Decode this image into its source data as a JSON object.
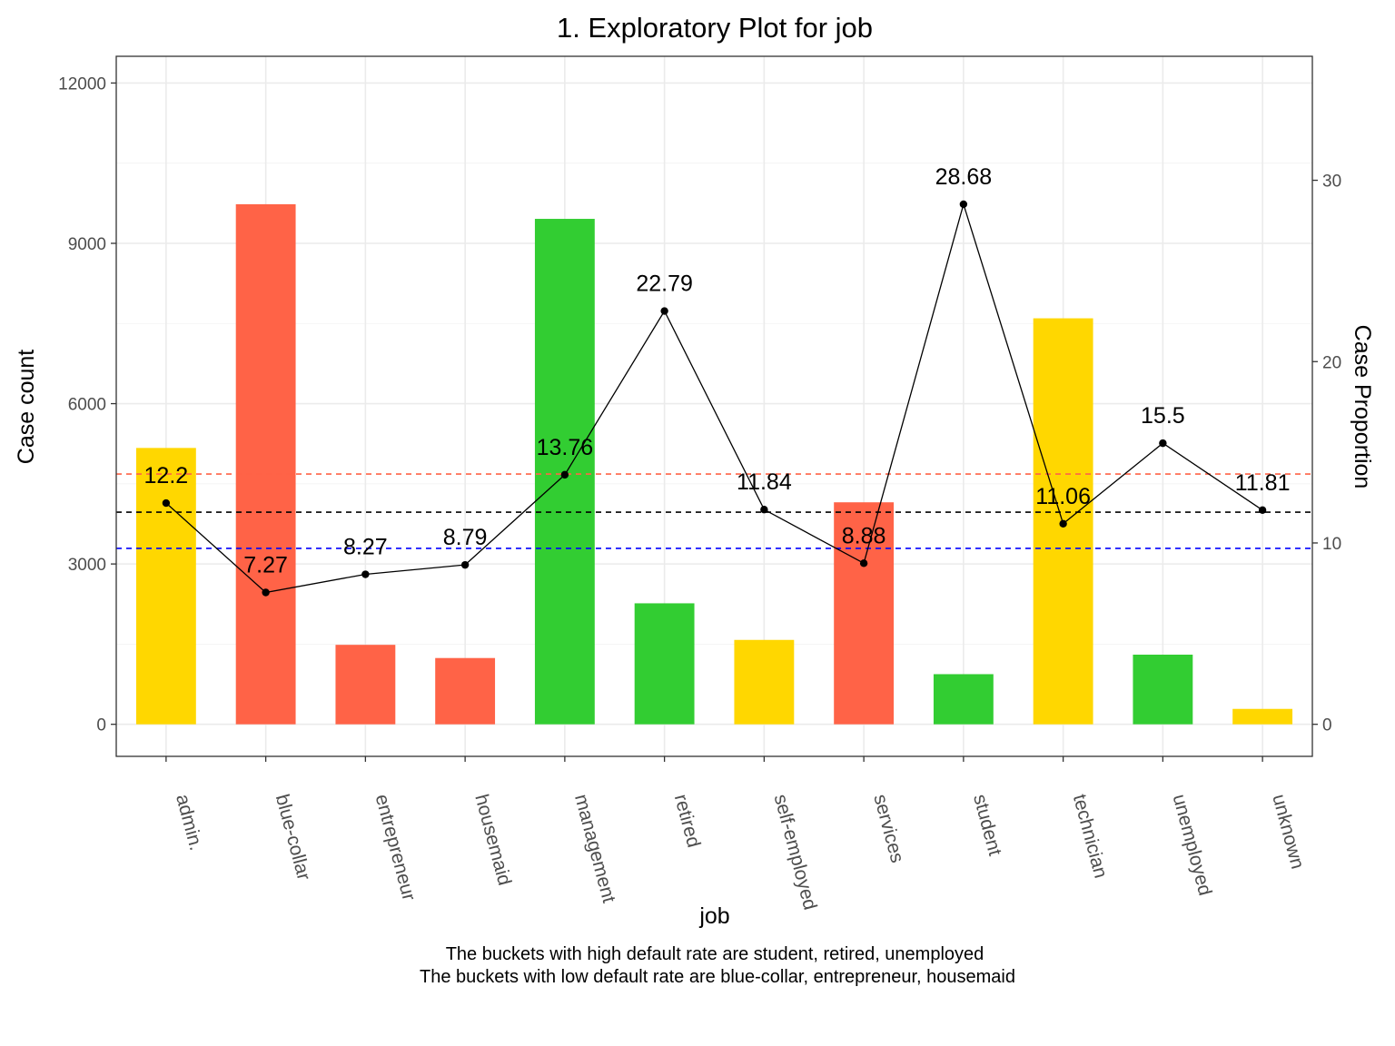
{
  "chart_data": {
    "type": "bar",
    "title": "1. Exploratory Plot for job",
    "xlabel": "job",
    "ylabel": "Case count",
    "y2label": "Case Proportion",
    "categories": [
      "admin.",
      "blue-collar",
      "entrepreneur",
      "housemaid",
      "management",
      "retired",
      "self-employed",
      "services",
      "student",
      "technician",
      "unemployed",
      "unknown"
    ],
    "series": [
      {
        "type": "bar",
        "axis": "left",
        "values": [
          5171,
          9732,
          1487,
          1240,
          9458,
          2264,
          1579,
          4154,
          938,
          7597,
          1303,
          288
        ],
        "colors": [
          "#FFD700",
          "#FF6347",
          "#FF6347",
          "#FF6347",
          "#32CD32",
          "#32CD32",
          "#FFD700",
          "#FF6347",
          "#32CD32",
          "#FFD700",
          "#32CD32",
          "#FFD700"
        ]
      },
      {
        "type": "line",
        "axis": "right",
        "values": [
          12.2,
          7.27,
          8.27,
          8.79,
          13.76,
          22.79,
          11.84,
          8.88,
          28.68,
          11.06,
          15.5,
          11.81
        ],
        "labels": [
          "12.2",
          "7.27",
          "8.27",
          "8.79",
          "13.76",
          "22.79",
          "11.84",
          "8.88",
          "28.68",
          "11.06",
          "15.5",
          "11.81"
        ]
      }
    ],
    "reference_lines": [
      {
        "axis": "right",
        "value": 13.8,
        "color": "#FF6347"
      },
      {
        "axis": "right",
        "value": 11.7,
        "color": "#000000"
      },
      {
        "axis": "right",
        "value": 9.7,
        "color": "#0000FF"
      }
    ],
    "ylim": [
      -600,
      12500
    ],
    "yticks": [
      0,
      3000,
      6000,
      9000,
      12000
    ],
    "y2ticks": [
      0,
      10,
      20,
      30
    ],
    "y2_scale": 339.33,
    "grid": true,
    "caption_lines": [
      "The buckets with high default rate are student, retired, unemployed",
      "The buckets with low default rate are blue-collar, entrepreneur, housemaid"
    ]
  }
}
